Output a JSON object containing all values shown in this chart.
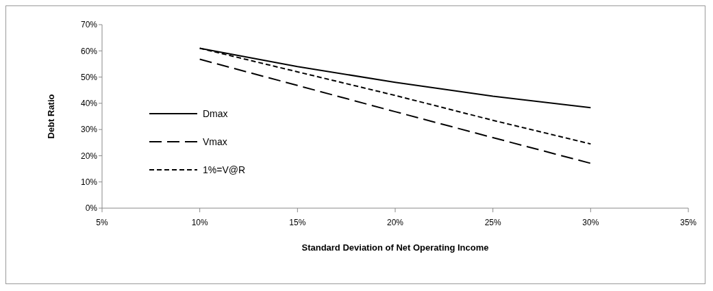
{
  "chart_data": {
    "type": "line",
    "xlabel": "Standard Deviation of Net Operating Income",
    "ylabel": "Debt Ratio",
    "x": [
      10,
      15,
      20,
      25,
      30
    ],
    "series": [
      {
        "name": "Dmax",
        "color": "#000000",
        "line_style": "solid",
        "values": [
          61,
          54,
          48,
          42.7,
          38.3
        ]
      },
      {
        "name": "Vmax",
        "color": "#000000",
        "line_style": "dashed",
        "values": [
          56.8,
          46.8,
          36.8,
          26.9,
          17.1
        ]
      },
      {
        "name": "1%=V@R",
        "color": "#000000",
        "line_style": "dotted",
        "values": [
          61,
          52,
          43,
          33.5,
          24.5
        ]
      }
    ],
    "xlim": [
      5,
      35
    ],
    "xticks": [
      {
        "value": 5,
        "label": "5%"
      },
      {
        "value": 10,
        "label": "10%"
      },
      {
        "value": 15,
        "label": "15%"
      },
      {
        "value": 20,
        "label": "20%"
      },
      {
        "value": 25,
        "label": "25%"
      },
      {
        "value": 30,
        "label": "30%"
      },
      {
        "value": 35,
        "label": "35%"
      }
    ],
    "ylim": [
      0,
      70
    ],
    "yticks": [
      {
        "value": 0,
        "label": "0%"
      },
      {
        "value": 10,
        "label": "10%"
      },
      {
        "value": 20,
        "label": "20%"
      },
      {
        "value": 30,
        "label": "30%"
      },
      {
        "value": 40,
        "label": "40%"
      },
      {
        "value": 50,
        "label": "50%"
      },
      {
        "value": 60,
        "label": "60%"
      },
      {
        "value": 70,
        "label": "70%"
      }
    ],
    "legend": "left",
    "grid": false,
    "marker": "none"
  }
}
